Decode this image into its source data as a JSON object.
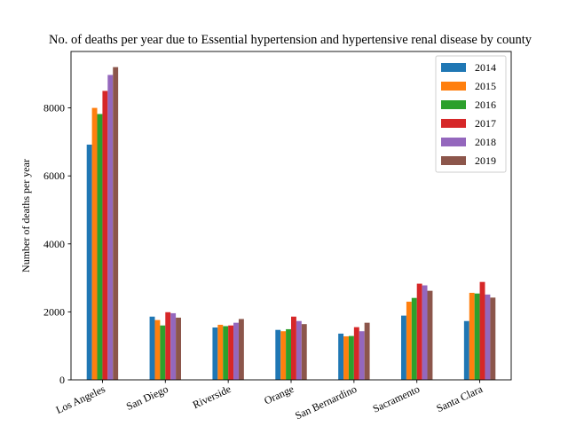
{
  "chart_data": {
    "type": "bar",
    "title": "No. of deaths per year due to Essential hypertension and hypertensive renal disease by county",
    "xlabel": "",
    "ylabel": "Number of deaths per year",
    "ylim": [
      0,
      9660
    ],
    "yticks": [
      "0",
      "2000",
      "4000",
      "6000",
      "8000"
    ],
    "grid": false,
    "legend_position": "top-right",
    "categories": [
      "Los Angeles",
      "San Diego",
      "Riverside",
      "Orange",
      "San Bernardino",
      "Sacramento",
      "Santa Clara"
    ],
    "series": [
      {
        "name": "2014",
        "color": "#1f77b4",
        "values": [
          6920,
          1860,
          1540,
          1470,
          1360,
          1890,
          1730
        ]
      },
      {
        "name": "2015",
        "color": "#ff7f0e",
        "values": [
          8000,
          1760,
          1620,
          1430,
          1280,
          2300,
          2560
        ]
      },
      {
        "name": "2016",
        "color": "#2ca02c",
        "values": [
          7820,
          1600,
          1580,
          1490,
          1290,
          2410,
          2540
        ]
      },
      {
        "name": "2017",
        "color": "#d62728",
        "values": [
          8500,
          1990,
          1600,
          1860,
          1550,
          2830,
          2880
        ]
      },
      {
        "name": "2018",
        "color": "#9467bd",
        "values": [
          8970,
          1960,
          1680,
          1730,
          1430,
          2780,
          2510
        ]
      },
      {
        "name": "2019",
        "color": "#8c564b",
        "values": [
          9200,
          1830,
          1790,
          1640,
          1680,
          2620,
          2420
        ]
      }
    ]
  }
}
